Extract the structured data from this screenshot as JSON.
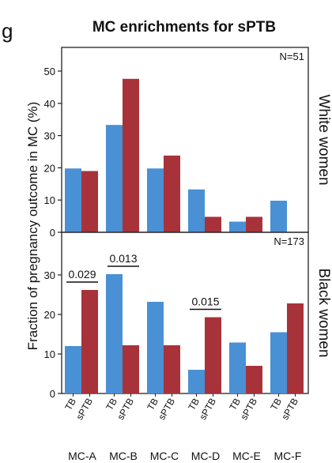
{
  "panel_letter": "g",
  "chart_data": {
    "type": "bar",
    "title": "MC enrichments for sPTB",
    "ylabel": "Fraction of pregnancy outcome in MC (%)",
    "categories": [
      "MC-A",
      "MC-B",
      "MC-C",
      "MC-D",
      "MC-E",
      "MC-F"
    ],
    "bar_labels": [
      "TB",
      "sPTB"
    ],
    "colors": {
      "TB": "#4a90d4",
      "sPTB": "#a8323a"
    },
    "panels": [
      {
        "label": "White women",
        "n_label": "N=51",
        "ylim": [
          0,
          57
        ],
        "yticks": [
          0,
          10,
          20,
          30,
          40,
          50
        ],
        "series": [
          {
            "name": "TB",
            "values": [
              19.8,
              33.3,
              19.8,
              13.3,
              3.3,
              9.8
            ]
          },
          {
            "name": "sPTB",
            "values": [
              19.0,
              47.6,
              23.8,
              4.8,
              4.8,
              0
            ]
          }
        ],
        "annotations": []
      },
      {
        "label": "Black women",
        "n_label": "N=173",
        "ylim": [
          0,
          37
        ],
        "yticks": [
          0,
          10,
          20,
          30
        ],
        "series": [
          {
            "name": "TB",
            "values": [
              12.0,
              30.2,
              23.2,
              6.0,
              12.9,
              15.5
            ]
          },
          {
            "name": "sPTB",
            "values": [
              26.2,
              12.2,
              12.2,
              19.3,
              7.0,
              22.8
            ]
          }
        ],
        "annotations": [
          {
            "category": "MC-A",
            "text": "0.029"
          },
          {
            "category": "MC-B",
            "text": "0.013"
          },
          {
            "category": "MC-D",
            "text": "0.015"
          }
        ]
      }
    ]
  }
}
